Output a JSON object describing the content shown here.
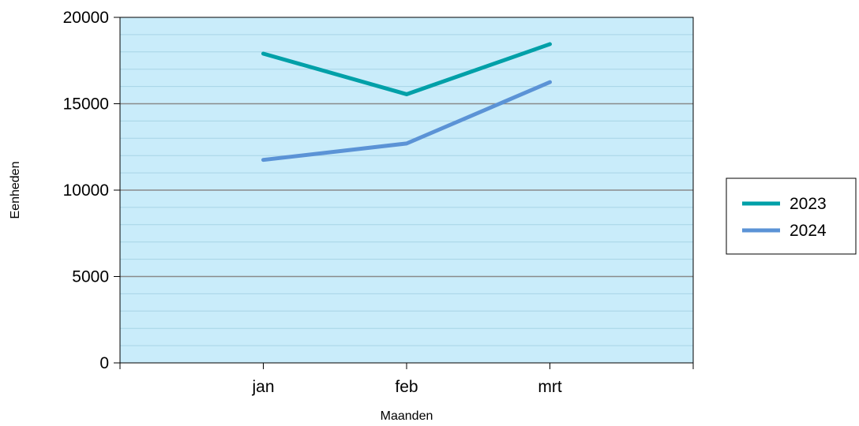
{
  "chart_data": {
    "type": "line",
    "categories": [
      "jan",
      "feb",
      "mrt"
    ],
    "series": [
      {
        "name": "2023",
        "values": [
          17900,
          15550,
          18450
        ],
        "color": "#00a0a8"
      },
      {
        "name": "2024",
        "values": [
          11750,
          12700,
          16250
        ],
        "color": "#5b93d6"
      }
    ],
    "xlabel": "Maanden",
    "ylabel": "Eenheden",
    "ylim": [
      0,
      20000
    ],
    "yticks": [
      0,
      5000,
      10000,
      15000,
      20000
    ],
    "grid": true,
    "legend_position": "right",
    "colors": {
      "plot_background": "#c9ecfa",
      "major_grid": "#8a8a8a",
      "minor_grid": "#a8d4e6"
    }
  }
}
